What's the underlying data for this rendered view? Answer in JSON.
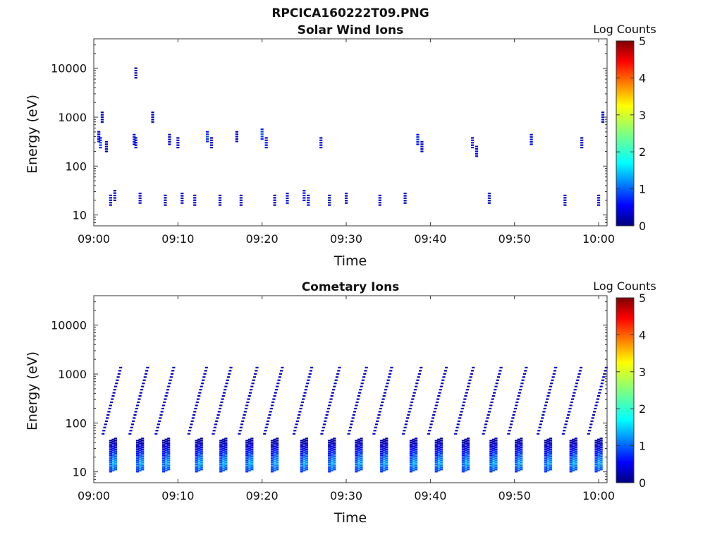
{
  "figure_title": "RPCICA160222T09.PNG",
  "chart_data": [
    {
      "type": "heatmap",
      "title": "Solar Wind Ions",
      "xlabel": "Time",
      "ylabel": "Energy (eV)",
      "x_ticks": [
        "09:00",
        "09:10",
        "09:20",
        "09:30",
        "09:40",
        "09:50",
        "10:00"
      ],
      "x_range": [
        "09:00",
        "10:01"
      ],
      "y_ticks": [
        "10",
        "100",
        "1000",
        "10000"
      ],
      "y_scale": "log",
      "y_range": [
        6,
        40000
      ],
      "colorbar": {
        "label": "Log Counts",
        "ticks": [
          "0",
          "1",
          "2",
          "3",
          "4",
          "5"
        ],
        "range": [
          0,
          5
        ],
        "colormap": "jet"
      },
      "cells": [
        {
          "t": 0.6,
          "e": 400,
          "v": 0.6
        },
        {
          "t": 0.8,
          "e": 300,
          "v": 1.0
        },
        {
          "t": 1.0,
          "e": 1000,
          "v": 0.3
        },
        {
          "t": 1.5,
          "e": 250,
          "v": 0.3
        },
        {
          "t": 2.0,
          "e": 20,
          "v": 0.5
        },
        {
          "t": 2.5,
          "e": 25,
          "v": 0.4
        },
        {
          "t": 4.8,
          "e": 350,
          "v": 0.8
        },
        {
          "t": 5.0,
          "e": 300,
          "v": 0.5
        },
        {
          "t": 5.5,
          "e": 22,
          "v": 0.6
        },
        {
          "t": 5.0,
          "e": 8000,
          "v": 0.2
        },
        {
          "t": 7.0,
          "e": 1000,
          "v": 0.3
        },
        {
          "t": 8.5,
          "e": 20,
          "v": 0.4
        },
        {
          "t": 9.0,
          "e": 350,
          "v": 0.5
        },
        {
          "t": 10.0,
          "e": 300,
          "v": 0.4
        },
        {
          "t": 10.5,
          "e": 22,
          "v": 0.5
        },
        {
          "t": 12.0,
          "e": 20,
          "v": 0.6
        },
        {
          "t": 13.5,
          "e": 400,
          "v": 1.0
        },
        {
          "t": 14.0,
          "e": 300,
          "v": 0.4
        },
        {
          "t": 15.0,
          "e": 20,
          "v": 0.4
        },
        {
          "t": 17.0,
          "e": 400,
          "v": 0.5
        },
        {
          "t": 17.5,
          "e": 20,
          "v": 0.5
        },
        {
          "t": 20.0,
          "e": 450,
          "v": 1.1
        },
        {
          "t": 20.5,
          "e": 300,
          "v": 0.7
        },
        {
          "t": 21.5,
          "e": 20,
          "v": 0.4
        },
        {
          "t": 23.0,
          "e": 22,
          "v": 0.7
        },
        {
          "t": 25.0,
          "e": 25,
          "v": 0.8
        },
        {
          "t": 25.5,
          "e": 20,
          "v": 0.7
        },
        {
          "t": 27.0,
          "e": 300,
          "v": 0.6
        },
        {
          "t": 28.0,
          "e": 20,
          "v": 0.4
        },
        {
          "t": 30.0,
          "e": 22,
          "v": 0.4
        },
        {
          "t": 34.0,
          "e": 20,
          "v": 0.5
        },
        {
          "t": 37.0,
          "e": 22,
          "v": 0.5
        },
        {
          "t": 38.5,
          "e": 350,
          "v": 0.9
        },
        {
          "t": 39.0,
          "e": 250,
          "v": 0.5
        },
        {
          "t": 45.0,
          "e": 300,
          "v": 0.7
        },
        {
          "t": 45.5,
          "e": 200,
          "v": 0.6
        },
        {
          "t": 47.0,
          "e": 22,
          "v": 0.5
        },
        {
          "t": 52.0,
          "e": 350,
          "v": 0.7
        },
        {
          "t": 56.0,
          "e": 20,
          "v": 0.5
        },
        {
          "t": 58.0,
          "e": 300,
          "v": 0.5
        },
        {
          "t": 60.0,
          "e": 20,
          "v": 0.6
        },
        {
          "t": 60.5,
          "e": 1000,
          "v": 0.4
        }
      ]
    },
    {
      "type": "heatmap",
      "title": "Cometary Ions",
      "xlabel": "Time",
      "ylabel": "Energy (eV)",
      "x_ticks": [
        "09:00",
        "09:10",
        "09:20",
        "09:30",
        "09:40",
        "09:50",
        "10:00"
      ],
      "x_range": [
        "09:00",
        "10:01"
      ],
      "y_ticks": [
        "10",
        "100",
        "1000",
        "10000"
      ],
      "y_scale": "log",
      "y_range": [
        6,
        40000
      ],
      "colorbar": {
        "label": "Log Counts",
        "ticks": [
          "0",
          "1",
          "2",
          "3",
          "4",
          "5"
        ],
        "range": [
          0,
          5
        ],
        "colormap": "jet"
      },
      "sweep_times": [
        2.3,
        5.5,
        8.6,
        12.5,
        15.4,
        18.5,
        21.5,
        25.0,
        28.3,
        31.5,
        34.5,
        38.0,
        41.0,
        44.2,
        47.5,
        50.5,
        54.0,
        57.0,
        60.0
      ],
      "sweep_peak_energy_eV": 15,
      "sweep_peak_log_counts": 1.6
    }
  ]
}
